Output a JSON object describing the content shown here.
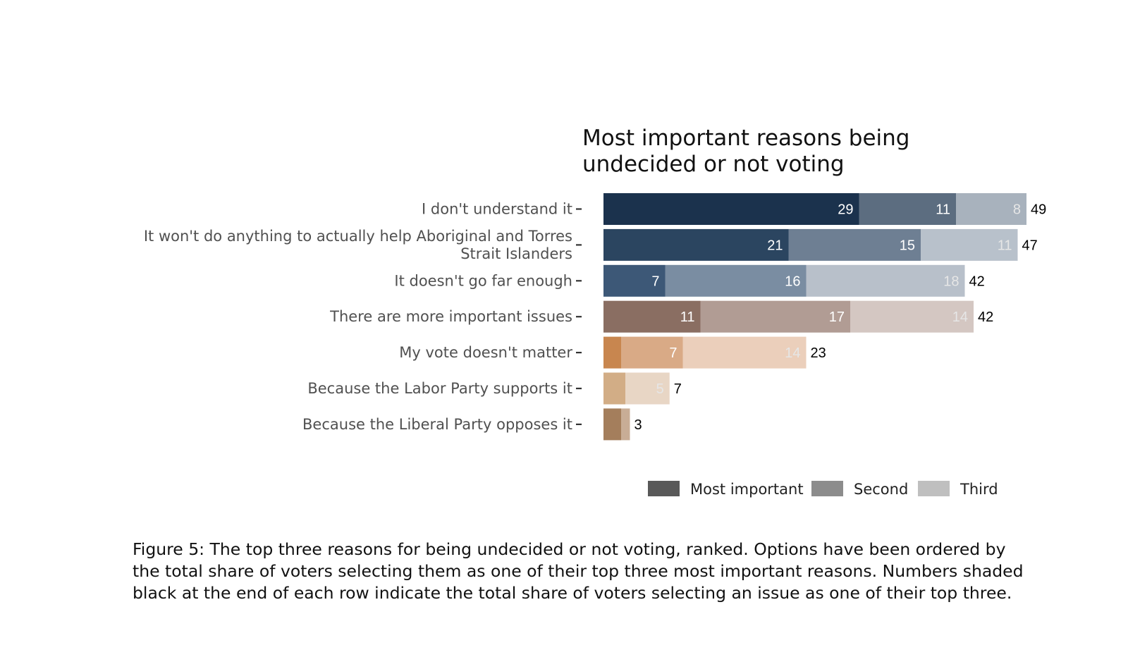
{
  "chart_data": {
    "type": "bar",
    "orientation": "horizontal",
    "stacked": true,
    "title_lines": [
      "Most important reasons being",
      "undecided or not voting"
    ],
    "categories": [
      [
        "I don't understand it"
      ],
      [
        "It won't do anything to actually help Aboriginal and Torres",
        "Strait Islanders"
      ],
      [
        "It doesn't go far enough"
      ],
      [
        "There are more important issues"
      ],
      [
        "My vote doesn't matter"
      ],
      [
        "Because the Labor Party supports it"
      ],
      [
        "Because the Liberal Party opposes it"
      ]
    ],
    "series": [
      {
        "name": "Most important",
        "values": [
          29,
          21,
          7,
          11,
          2,
          2.5,
          2
        ]
      },
      {
        "name": "Second",
        "values": [
          11,
          15,
          16,
          17,
          7,
          0,
          1
        ]
      },
      {
        "name": "Third",
        "values": [
          8,
          11,
          18,
          14,
          14,
          5,
          0
        ]
      }
    ],
    "segment_labels": [
      [
        "29",
        "11",
        "8"
      ],
      [
        "21",
        "15",
        "11"
      ],
      [
        "7",
        "16",
        "18"
      ],
      [
        "11",
        "17",
        "14"
      ],
      [
        "",
        "7",
        "14"
      ],
      [
        "",
        "",
        "5"
      ],
      [
        "",
        "",
        ""
      ]
    ],
    "totals": [
      "49",
      "47",
      "42",
      "42",
      "23",
      "7",
      "3"
    ],
    "row_colors": [
      [
        "#1b324d",
        "#5c6d80",
        "#a8b2bd"
      ],
      [
        "#2b4560",
        "#6e7f93",
        "#b8c1cb"
      ],
      [
        "#3d5877",
        "#7a8da2",
        "#b8c0ca"
      ],
      [
        "#8a6e62",
        "#b19c94",
        "#d4c7c2"
      ],
      [
        "#c8864f",
        "#d9aa86",
        "#ebcfbb"
      ],
      [
        "#d2ad86",
        "#d2ad86",
        "#e8d6c5"
      ],
      [
        "#a47e5c",
        "#c8ad96",
        "#d9c6b5"
      ]
    ],
    "segment_label_colors": [
      "#ffffff",
      "#ffffff",
      "#e6e6e6"
    ],
    "xlim": [
      0,
      49
    ],
    "legend": {
      "position": "bottom-right",
      "items": [
        {
          "label": "Most important",
          "color": "#595959"
        },
        {
          "label": "Second",
          "color": "#8c8c8c"
        },
        {
          "label": "Third",
          "color": "#bfbfbf"
        }
      ]
    },
    "grid": false
  },
  "caption": {
    "lines": [
      "Figure 5: The top three reasons for being undecided or not voting, ranked. Options have been ordered by",
      "the total share of voters selecting them as one of their top three most important reasons. Numbers shaded",
      "black at the end of each row indicate the total share of voters selecting an issue as one of their top three."
    ]
  }
}
